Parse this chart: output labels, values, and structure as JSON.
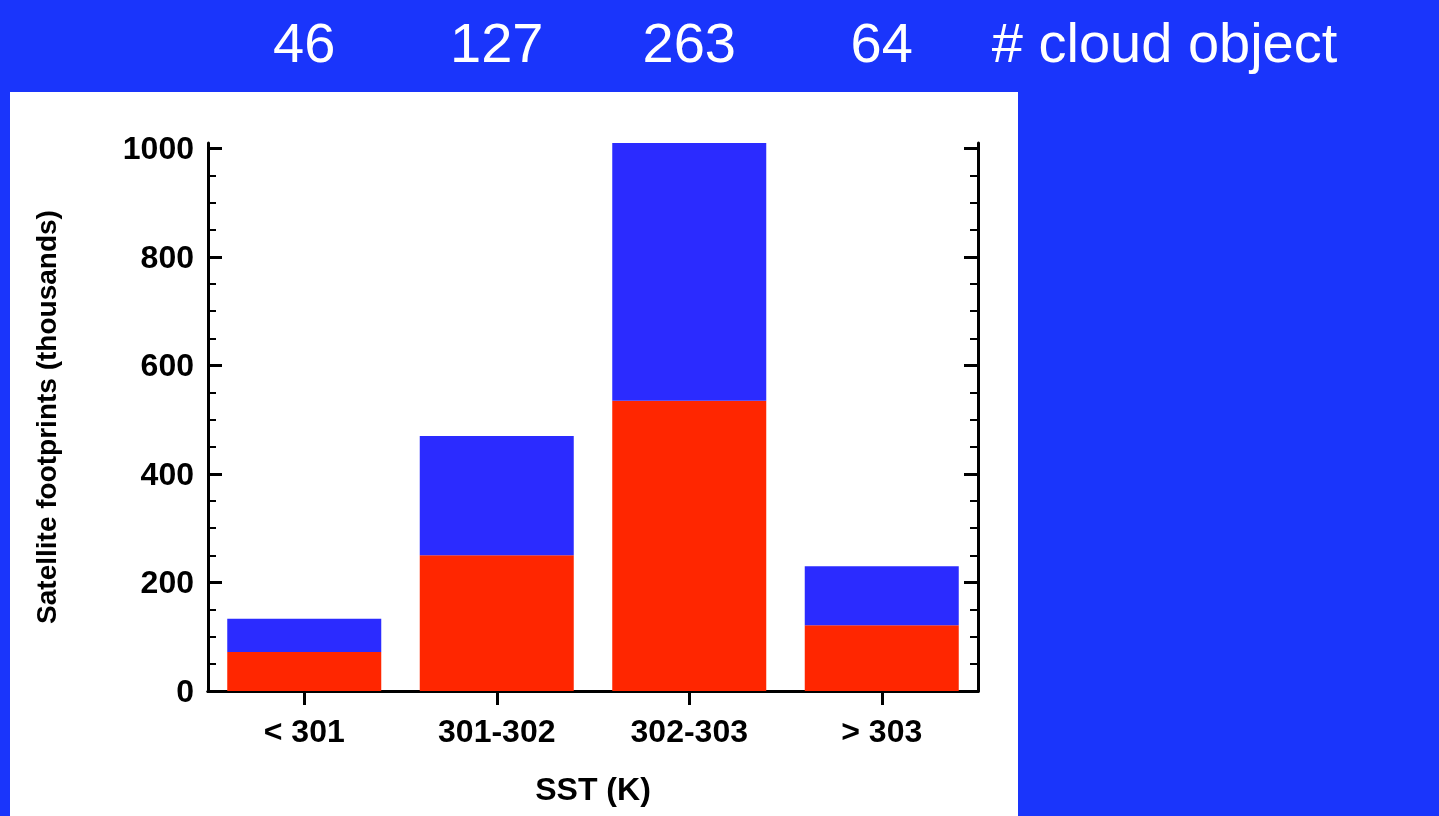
{
  "chart_data": {
    "type": "bar",
    "stacked": true,
    "xlabel": "SST (K)",
    "ylabel": "Satellite footprints (thousands)",
    "categories": [
      "< 301",
      "301-302",
      "302-303",
      "> 303"
    ],
    "series": [
      {
        "color": "#ff2600",
        "values": [
          72,
          250,
          535,
          121
        ]
      },
      {
        "color": "#2b2bff",
        "values": [
          61,
          220,
          475,
          109
        ]
      }
    ],
    "ylim": [
      0,
      1010
    ],
    "yticks": [
      0,
      200,
      400,
      600,
      800,
      1000
    ],
    "grid": false,
    "annotations": [
      "46",
      "127",
      "263",
      "64",
      "# cloud object"
    ]
  }
}
